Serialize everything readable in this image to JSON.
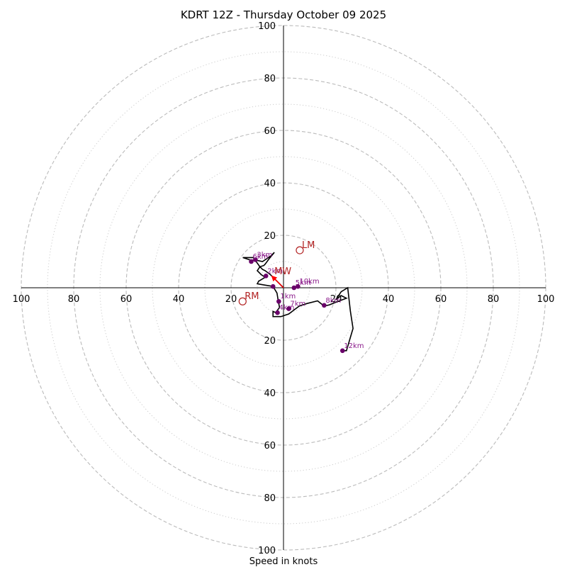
{
  "chart_data": {
    "type": "hodograph",
    "title": "KDRT 12Z - Thursday October 09 2025",
    "xlabel": "Speed in knots",
    "unit": "knots",
    "axis_range": [
      -100,
      100
    ],
    "ring_major": [
      20,
      40,
      60,
      80,
      100
    ],
    "ring_minor": [
      10,
      30,
      50,
      70,
      90
    ],
    "tick_labels": {
      "x_left": [
        "100",
        "80",
        "60",
        "40",
        "20"
      ],
      "x_right": [
        "20",
        "40",
        "60",
        "80",
        "100"
      ],
      "y_top": [
        "100",
        "80",
        "60",
        "40",
        "20"
      ],
      "y_bottom": [
        "20",
        "40",
        "60",
        "80",
        "100"
      ]
    },
    "hodograph_trace": [
      [
        0.0,
        0.0
      ],
      [
        -2.0,
        2.0
      ],
      [
        -3.5,
        3.5
      ],
      [
        -5.0,
        5.0
      ],
      [
        -7.0,
        6.5
      ],
      [
        -8.0,
        7.0
      ],
      [
        -9.0,
        8.0
      ],
      [
        -7.5,
        8.5
      ],
      [
        -7.0,
        9.0
      ],
      [
        -5.5,
        11.0
      ],
      [
        -3.5,
        13.5
      ],
      [
        -5.0,
        12.0
      ],
      [
        -8.0,
        10.0
      ],
      [
        -10.5,
        10.5
      ],
      [
        -12.5,
        10.5
      ],
      [
        -15.5,
        11.5
      ],
      [
        -11.5,
        11.5
      ],
      [
        -9.0,
        8.0
      ],
      [
        -10.0,
        6.5
      ],
      [
        -8.5,
        5.0
      ],
      [
        -7.0,
        4.0
      ],
      [
        -9.5,
        2.5
      ],
      [
        -10.0,
        1.5
      ],
      [
        -7.0,
        1.0
      ],
      [
        -4.0,
        0.5
      ],
      [
        -2.5,
        -2.0
      ],
      [
        -2.0,
        -5.0
      ],
      [
        -1.5,
        -7.5
      ],
      [
        -3.0,
        -9.5
      ],
      [
        -4.0,
        -9.0
      ],
      [
        -4.0,
        -11.0
      ],
      [
        -1.0,
        -11.0
      ],
      [
        2.0,
        -10.0
      ],
      [
        4.0,
        -8.5
      ],
      [
        6.0,
        -7.0
      ],
      [
        9.0,
        -6.0
      ],
      [
        13.0,
        -5.0
      ],
      [
        15.5,
        -7.0
      ],
      [
        17.5,
        -6.5
      ],
      [
        20.0,
        -5.5
      ],
      [
        24.0,
        -4.0
      ],
      [
        22.0,
        -3.0
      ],
      [
        20.0,
        -4.5
      ],
      [
        22.0,
        -1.5
      ],
      [
        24.5,
        0.0
      ],
      [
        25.5,
        -9.0
      ],
      [
        26.5,
        -15.5
      ],
      [
        24.0,
        -24.0
      ],
      [
        22.5,
        -24.0
      ]
    ],
    "height_points": [
      {
        "label": "",
        "u": -4.0,
        "v": 0.5
      },
      {
        "label": "1km",
        "u": -1.8,
        "v": -5.2
      },
      {
        "label": "2km",
        "u": -6.7,
        "v": 4.5
      },
      {
        "label": "3km",
        "u": -10.7,
        "v": 10.7
      },
      {
        "label": "4km",
        "u": -2.3,
        "v": -9.5
      },
      {
        "label": "5km",
        "u": 4.0,
        "v": 0.0
      },
      {
        "label": "6km",
        "u": -12.3,
        "v": 10.0
      },
      {
        "label": "7km",
        "u": 2.0,
        "v": -8.0
      },
      {
        "label": "8km",
        "u": 15.5,
        "v": -6.7
      },
      {
        "label": "10km",
        "u": 5.5,
        "v": 0.5
      },
      {
        "label": "12km",
        "u": 22.5,
        "v": -24.0
      }
    ],
    "storm_motion": [
      {
        "label": "LM",
        "u": 6.2,
        "v": 14.3
      },
      {
        "label": "RM",
        "u": -15.6,
        "v": -5.2
      },
      {
        "label": "MW",
        "u": -4.3,
        "v": 4.3
      }
    ],
    "mean_wind_vector": {
      "u": -4.3,
      "v": 4.3
    },
    "colors": {
      "trace": "#000000",
      "height_points": "#6a006a",
      "height_labels": "#8a1a8a",
      "motion": "#b22222",
      "mean_wind_arrow": "#ff0000",
      "ring": "#bbbbbb",
      "axis": "#000000"
    }
  }
}
